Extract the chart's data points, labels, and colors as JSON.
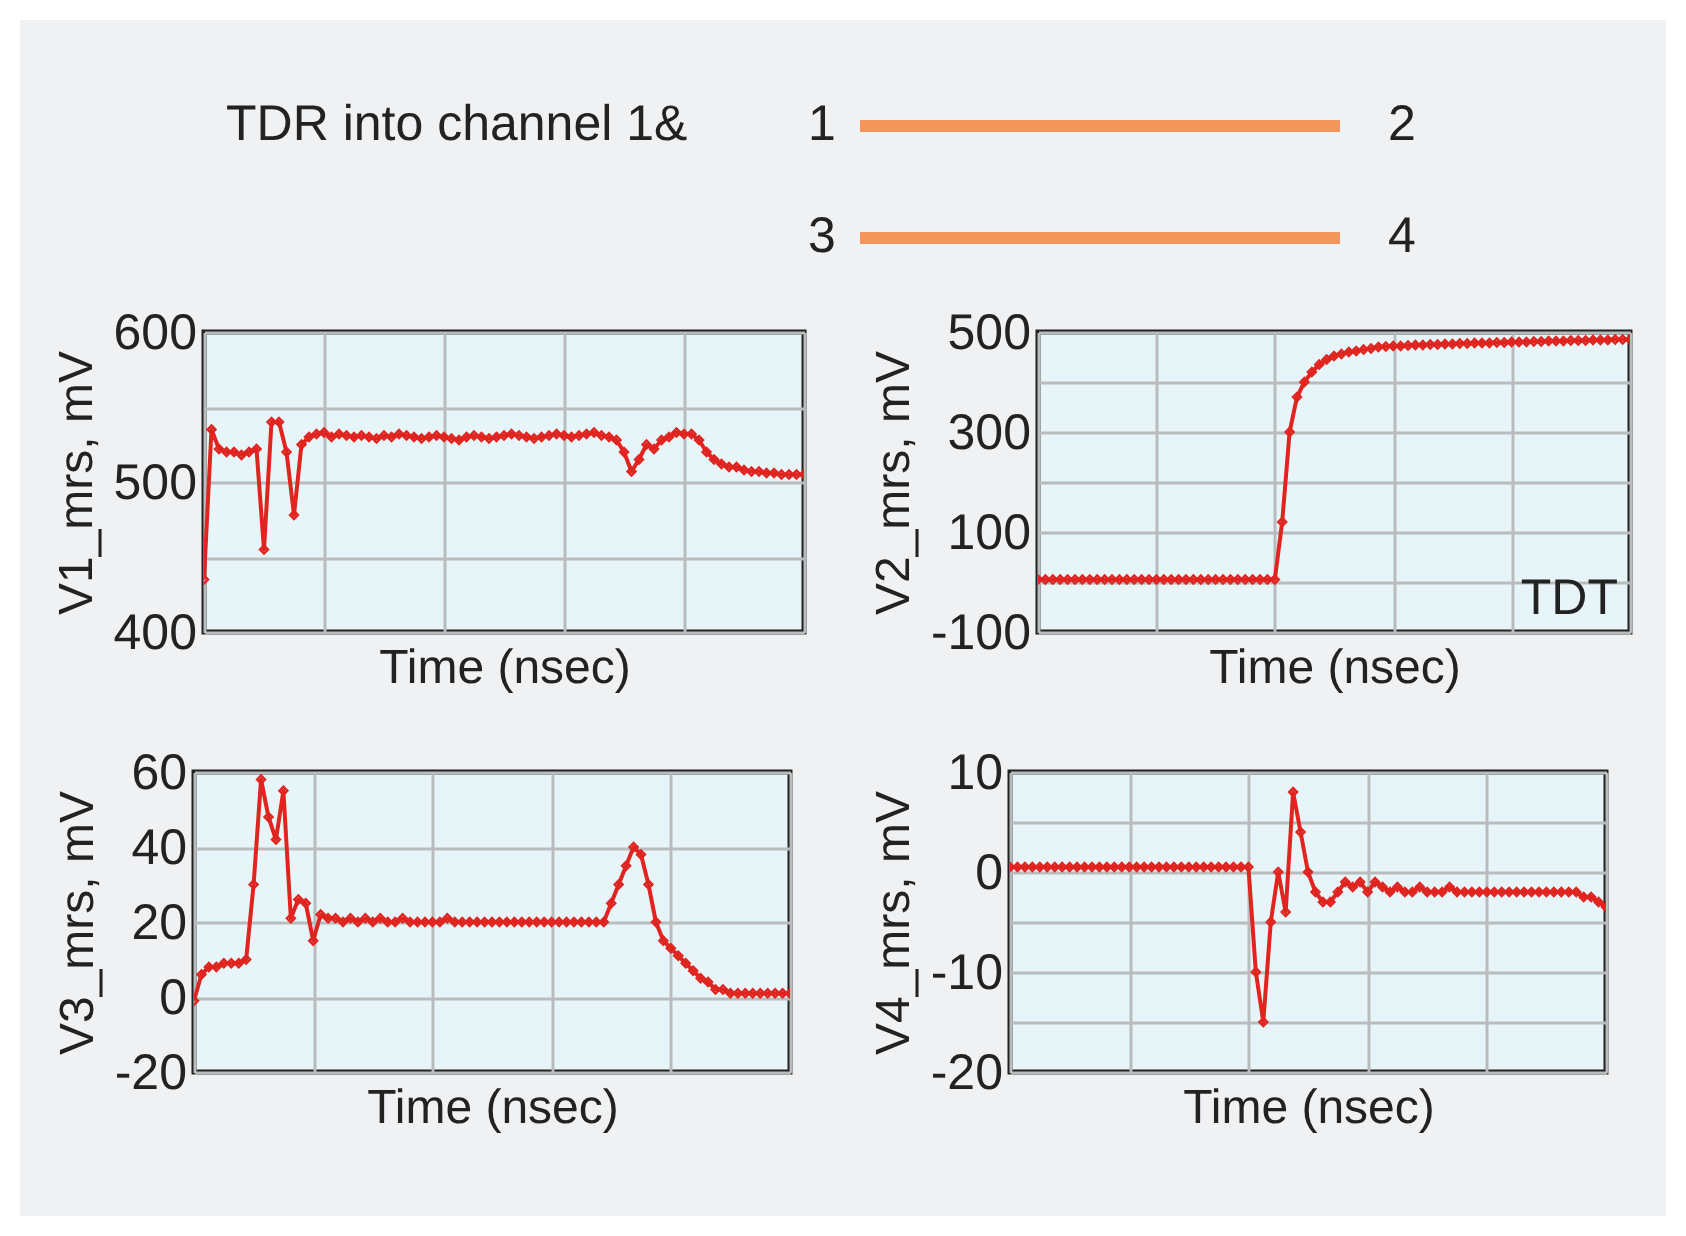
{
  "chart_data": [
    {
      "type": "other",
      "annotations": [
        "TDR into channel 1&",
        "1",
        "2",
        "3",
        "4"
      ]
    },
    {
      "type": "line",
      "xlabel": "Time (nsec)",
      "ylabel": "V1_mrs, mV",
      "color": "#e0241f",
      "marker": "diamond",
      "grid": true,
      "tick_labels": "y",
      "categories": [
        null,
        null,
        null,
        null,
        null,
        null,
        null,
        null,
        null,
        null,
        null,
        null,
        null,
        null,
        null,
        null,
        null,
        null,
        null,
        null,
        null,
        null,
        null,
        null,
        null,
        null,
        null,
        null,
        null,
        null,
        null,
        null,
        null,
        null,
        null,
        null,
        null,
        null,
        null,
        null,
        null,
        null,
        null,
        null,
        null,
        null,
        null,
        null,
        null,
        null,
        null,
        null,
        null,
        null,
        null,
        null,
        null,
        null,
        null,
        null,
        null,
        null,
        null,
        null,
        null,
        null,
        null,
        null,
        null,
        null,
        null,
        null,
        null,
        null,
        null,
        null,
        null,
        null,
        null,
        null,
        null
      ],
      "values": [
        435,
        535,
        522,
        520,
        520,
        518,
        520,
        522,
        455,
        540,
        540,
        520,
        478,
        525,
        530,
        532,
        533,
        530,
        532,
        531,
        530,
        531,
        530,
        529,
        531,
        530,
        532,
        531,
        530,
        529,
        530,
        531,
        530,
        529,
        528,
        530,
        531,
        530,
        529,
        530,
        531,
        532,
        531,
        530,
        529,
        530,
        531,
        532,
        531,
        530,
        531,
        532,
        533,
        531,
        530,
        528,
        520,
        507,
        515,
        525,
        522,
        528,
        530,
        533,
        532,
        532,
        528,
        520,
        515,
        512,
        510,
        510,
        508,
        507,
        507,
        506,
        506,
        505,
        505,
        505,
        505
      ],
      "ylim": [
        400,
        600
      ],
      "yticks": [
        400,
        {
          "value": 450,
          "label": null
        },
        500,
        {
          "value": 550,
          "label": null
        },
        600
      ]
    },
    {
      "type": "line",
      "xlabel": "Time (nsec)",
      "ylabel": "V2_mrs, mV",
      "color": "#e0241f",
      "marker": "diamond",
      "grid": true,
      "tick_labels": "y",
      "annotations": [
        "TDT"
      ],
      "categories": [
        null,
        null,
        null,
        null,
        null,
        null,
        null,
        null,
        null,
        null,
        null,
        null,
        null,
        null,
        null,
        null,
        null,
        null,
        null,
        null,
        null,
        null,
        null,
        null,
        null,
        null,
        null,
        null,
        null,
        null,
        null,
        null,
        null,
        null,
        null,
        null,
        null,
        null,
        null,
        null,
        null,
        null,
        null,
        null,
        null,
        null,
        null,
        null,
        null,
        null,
        null,
        null,
        null,
        null,
        null,
        null,
        null,
        null,
        null,
        null,
        null,
        null,
        null,
        null,
        null,
        null,
        null,
        null,
        null,
        null,
        null,
        null,
        null,
        null,
        null,
        null,
        null,
        null,
        null,
        null,
        null
      ],
      "values": [
        5,
        5,
        5,
        5,
        5,
        5,
        5,
        5,
        5,
        5,
        5,
        5,
        5,
        5,
        5,
        5,
        5,
        5,
        5,
        5,
        5,
        5,
        5,
        5,
        5,
        5,
        5,
        5,
        5,
        5,
        5,
        5,
        5,
        120,
        300,
        370,
        400,
        420,
        435,
        445,
        452,
        456,
        460,
        462,
        465,
        467,
        470,
        471,
        472,
        472,
        473,
        474,
        474,
        475,
        475,
        476,
        476,
        477,
        477,
        478,
        478,
        478,
        479,
        479,
        480,
        480,
        480,
        481,
        481,
        482,
        482,
        482,
        483,
        483,
        483,
        484,
        484,
        484,
        485,
        485,
        485
      ],
      "ylim": [
        -100,
        500
      ],
      "yticks": [
        -100,
        {
          "value": 0,
          "label": null
        },
        100,
        {
          "value": 200,
          "label": null
        },
        300,
        {
          "value": 400,
          "label": null
        },
        500
      ]
    },
    {
      "type": "line",
      "xlabel": "Time (nsec)",
      "ylabel": "V3_mrs, mV",
      "color": "#e0241f",
      "marker": "diamond",
      "grid": true,
      "tick_labels": "y",
      "categories": [
        null,
        null,
        null,
        null,
        null,
        null,
        null,
        null,
        null,
        null,
        null,
        null,
        null,
        null,
        null,
        null,
        null,
        null,
        null,
        null,
        null,
        null,
        null,
        null,
        null,
        null,
        null,
        null,
        null,
        null,
        null,
        null,
        null,
        null,
        null,
        null,
        null,
        null,
        null,
        null,
        null,
        null,
        null,
        null,
        null,
        null,
        null,
        null,
        null,
        null,
        null,
        null,
        null,
        null,
        null,
        null,
        null,
        null,
        null,
        null,
        null,
        null,
        null,
        null,
        null,
        null,
        null,
        null,
        null,
        null,
        null,
        null,
        null,
        null,
        null,
        null,
        null,
        null,
        null,
        null,
        null
      ],
      "values": [
        -1,
        6,
        8,
        8,
        9,
        9,
        9,
        10,
        30,
        58,
        48,
        42,
        55,
        21,
        26,
        25,
        15,
        22,
        21,
        21,
        20,
        21,
        20,
        21,
        20,
        21,
        20,
        20,
        21,
        20,
        20,
        20,
        20,
        20,
        21,
        20,
        20,
        20,
        20,
        20,
        20,
        20,
        20,
        20,
        20,
        20,
        20,
        20,
        20,
        20,
        20,
        20,
        20,
        20,
        20,
        20,
        25,
        30,
        35,
        40,
        38,
        30,
        20,
        15,
        13,
        11,
        9,
        7,
        5,
        4,
        2,
        2,
        1,
        1,
        1,
        1,
        1,
        1,
        1,
        1,
        1
      ],
      "ylim": [
        -20,
        60
      ],
      "yticks": [
        -20,
        0,
        20,
        40,
        60
      ]
    },
    {
      "type": "line",
      "xlabel": "Time (nsec)",
      "ylabel": "V4_mrs, mV",
      "color": "#e0241f",
      "marker": "diamond",
      "grid": true,
      "tick_labels": "y",
      "categories": [
        null,
        null,
        null,
        null,
        null,
        null,
        null,
        null,
        null,
        null,
        null,
        null,
        null,
        null,
        null,
        null,
        null,
        null,
        null,
        null,
        null,
        null,
        null,
        null,
        null,
        null,
        null,
        null,
        null,
        null,
        null,
        null,
        null,
        null,
        null,
        null,
        null,
        null,
        null,
        null,
        null,
        null,
        null,
        null,
        null,
        null,
        null,
        null,
        null,
        null,
        null,
        null,
        null,
        null,
        null,
        null,
        null,
        null,
        null,
        null,
        null,
        null,
        null,
        null,
        null,
        null,
        null,
        null,
        null,
        null,
        null,
        null,
        null,
        null,
        null,
        null,
        null,
        null,
        null,
        null,
        null
      ],
      "values": [
        0.5,
        0.5,
        0.5,
        0.5,
        0.5,
        0.5,
        0.5,
        0.5,
        0.5,
        0.5,
        0.5,
        0.5,
        0.5,
        0.5,
        0.5,
        0.5,
        0.5,
        0.5,
        0.5,
        0.5,
        0.5,
        0.5,
        0.5,
        0.5,
        0.5,
        0.5,
        0.5,
        0.5,
        0.5,
        0.5,
        0.5,
        0.5,
        0.5,
        -10,
        -15,
        -5,
        0,
        -4,
        8,
        4,
        0,
        -2,
        -3,
        -3,
        -2,
        -1,
        -1.5,
        -1,
        -2,
        -1,
        -1.5,
        -2,
        -1.5,
        -2,
        -2,
        -1.5,
        -2,
        -2,
        -2,
        -1.5,
        -2,
        -2,
        -2,
        -2,
        -2,
        -2,
        -2,
        -2,
        -2,
        -2,
        -2,
        -2,
        -2,
        -2,
        -2,
        -2,
        -2,
        -2.5,
        -2.5,
        -3,
        -3.5
      ],
      "ylim": [
        -20,
        10
      ],
      "yticks": [
        -20,
        {
          "value": -15,
          "label": null
        },
        -10,
        {
          "value": -5,
          "label": null
        },
        0,
        {
          "value": 5,
          "label": null
        },
        10
      ]
    }
  ]
}
